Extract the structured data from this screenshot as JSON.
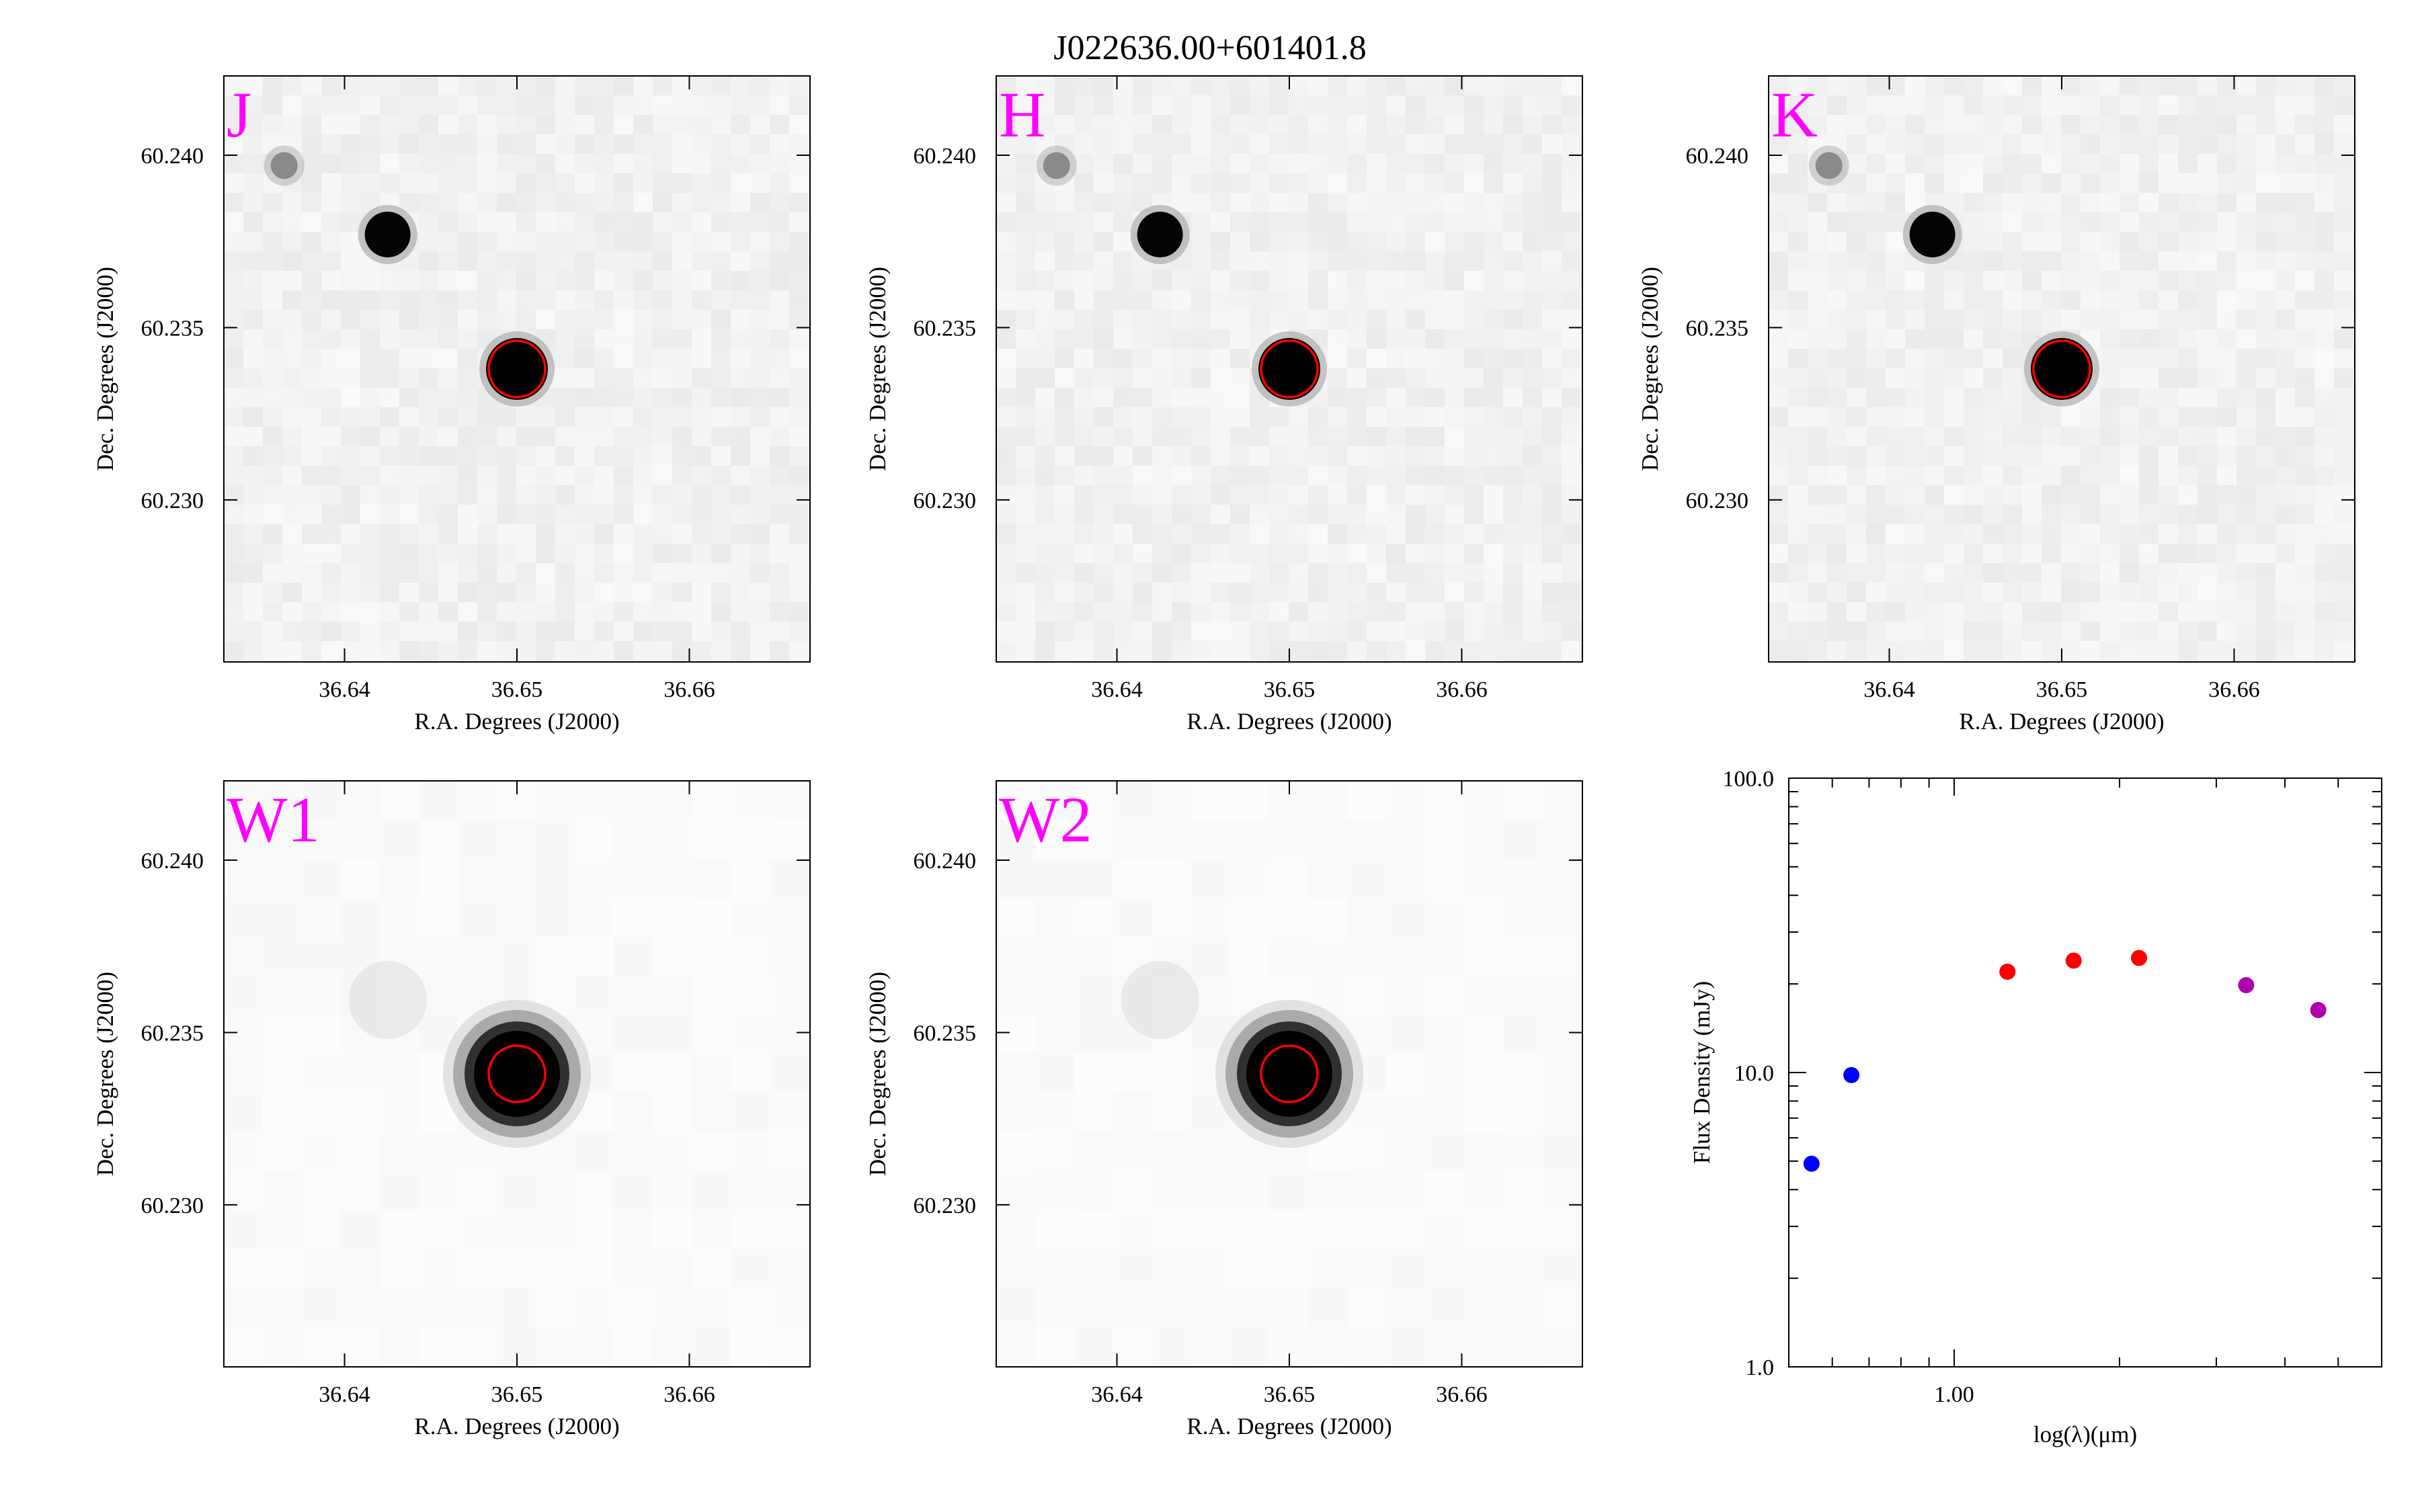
{
  "title": "J022636.00+601401.8",
  "image_panels": [
    {
      "band": "J"
    },
    {
      "band": "H"
    },
    {
      "band": "K"
    },
    {
      "band": "W1"
    },
    {
      "band": "W2"
    }
  ],
  "image_axes": {
    "xlabel": "R.A. Degrees (J2000)",
    "ylabel": "Dec. Degrees (J2000)",
    "xlim": [
      36.633,
      36.667
    ],
    "ylim": [
      60.2253,
      60.2423
    ],
    "xticks": [
      "36.64",
      "36.65",
      "36.66"
    ],
    "yticks": [
      "60.240",
      "60.235",
      "60.230"
    ],
    "target": {
      "ra": 36.65,
      "dec": 60.2338,
      "marker_color": "#ff0000"
    },
    "sources": [
      {
        "ra": 36.65,
        "dec": 60.2338
      },
      {
        "ra": 36.6425,
        "dec": 60.2377
      },
      {
        "ra": 36.6365,
        "dec": 60.2397
      }
    ]
  },
  "colors": {
    "band_label": "#ff00ff",
    "marker": "#ff0000"
  },
  "chart_data": {
    "type": "scatter",
    "xlabel": "log(λ)(μm)",
    "ylabel": "Flux Density (mJy)",
    "xscale": "log",
    "yscale": "log",
    "ylim": [
      1.0,
      100.0
    ],
    "xlim": [
      0.5,
      6.0
    ],
    "yticks": [
      "1.0",
      "10.0",
      "100.0"
    ],
    "xticks": [
      "1.00"
    ],
    "series": [
      {
        "color": "#0000ff",
        "x": [
          0.55,
          0.65
        ],
        "y": [
          4.9,
          9.8
        ]
      },
      {
        "color": "#ff0000",
        "x": [
          1.25,
          1.65,
          2.17
        ],
        "y": [
          22.0,
          24.0,
          24.5
        ]
      },
      {
        "color": "#b000b0",
        "x": [
          3.4,
          4.6
        ],
        "y": [
          19.8,
          16.3
        ]
      }
    ]
  }
}
